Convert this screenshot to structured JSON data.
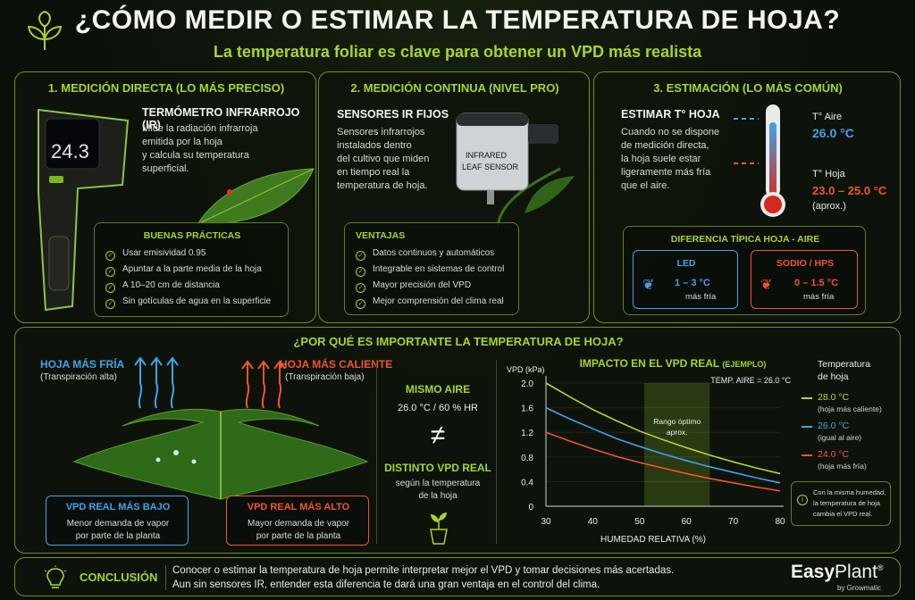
{
  "header": {
    "title": "¿CÓMO MEDIR O ESTIMAR LA TEMPERATURA DE HOJA?",
    "subtitle": "La temperatura foliar es clave para obtener un VPD más realista"
  },
  "section1": {
    "title": "1. MEDICIÓN DIRECTA (LO MÁS PRECISO)",
    "heading": "TERMÓMETRO INFRARROJO (IR)",
    "body": [
      "Mide la radiación infrarroja",
      "emitida por la hoja",
      "y calcula su temperatura",
      "superficial."
    ],
    "device_reading": "24.3",
    "practices_title": "BUENAS PRÁCTICAS",
    "practices": [
      "Usar emisividad 0.95",
      "Apuntar a la parte media de la hoja",
      "A 10–20 cm de distancia",
      "Sin gotículas de agua en la superficie"
    ]
  },
  "section2": {
    "title": "2. MEDICIÓN CONTINUA (NIVEL PRO)",
    "heading": "SENSORES IR FIJOS",
    "body": [
      "Sensores infrarrojos",
      "instalados dentro",
      "del cultivo que miden",
      "en tiempo real la",
      "temperatura de hoja."
    ],
    "sensor_label_1": "INFRARED",
    "sensor_label_2": "LEAF SENSOR",
    "advantages_title": "VENTAJAS",
    "advantages": [
      "Datos continuos y automáticos",
      "Integrable en sistemas de control",
      "Mayor precisión del VPD",
      "Mejor comprensión del clima real"
    ]
  },
  "section3": {
    "title": "3. ESTIMACIÓN (LO MÁS COMÚN)",
    "heading": "ESTIMAR T° HOJA",
    "body": [
      "Cuando no se dispone",
      "de medición directa,",
      "la hoja suele estar",
      "ligeramente más fría",
      "que el aire."
    ],
    "air_label": "T° Aire",
    "air_value": "26.0 °C",
    "leaf_label": "T° Hoja",
    "leaf_value": "23.0 – 25.0 °C",
    "leaf_note": "(aprox.)",
    "diff_title": "DIFERENCIA TÍPICA HOJA - AIRE",
    "led_title": "LED",
    "led_value": "1 – 3 °C",
    "led_note": "más fría",
    "hps_title": "SODIO / HPS",
    "hps_value": "0 – 1.5 °C",
    "hps_note": "más fría"
  },
  "why": {
    "title": "¿POR QUÉ ES IMPORTANTE LA TEMPERATURA DE HOJA?",
    "cold_title": "HOJA MÁS FRÍA",
    "cold_note": "(Transpiración alta)",
    "hot_title": "HOJA MÁS CALIENTE",
    "hot_note": "(Transpiración baja)",
    "low_title": "VPD REAL MÁS BAJO",
    "low_body": [
      "Menor demanda de vapor",
      "por parte de la planta"
    ],
    "high_title": "VPD REAL MÁS ALTO",
    "high_body": [
      "Mayor demanda de vapor",
      "por parte de la planta"
    ],
    "same_air_title": "MISMO AIRE",
    "same_air_value": "26.0 °C / 60 % HR",
    "neq": "≠",
    "distinct_title": "DISTINTO VPD REAL",
    "distinct_body": [
      "según la temperatura",
      "de la hoja"
    ]
  },
  "chart_data": {
    "type": "line",
    "title": "IMPACTO EN EL VPD REAL",
    "title_note": "(EJEMPLO)",
    "note": "TEMP. AIRE = 26.0 °C",
    "xlabel": "HUMEDAD RELATIVA (%)",
    "ylabel": "VPD (kPa)",
    "xlim": [
      30,
      80
    ],
    "ylim": [
      0,
      2.0
    ],
    "xticks": [
      30,
      40,
      50,
      60,
      70,
      80
    ],
    "yticks": [
      0,
      0.4,
      0.8,
      1.2,
      1.6,
      2.0
    ],
    "band": {
      "x": [
        51,
        65
      ],
      "label_1": "Rango óptimo",
      "label_2": "aprox."
    },
    "x": [
      30,
      35,
      40,
      45,
      50,
      55,
      60,
      65,
      70,
      75,
      80
    ],
    "series": [
      {
        "name": "28.0 °C",
        "color": "#b6d335",
        "values": [
          2.0,
          1.78,
          1.57,
          1.39,
          1.22,
          1.08,
          0.95,
          0.83,
          0.72,
          0.62,
          0.53
        ]
      },
      {
        "name": "26.0 °C",
        "color": "#3fa4ea",
        "values": [
          1.6,
          1.42,
          1.26,
          1.1,
          0.97,
          0.85,
          0.74,
          0.64,
          0.55,
          0.46,
          0.38
        ]
      },
      {
        "name": "24.0 °C",
        "color": "#f0562a",
        "values": [
          1.2,
          1.06,
          0.93,
          0.81,
          0.71,
          0.62,
          0.53,
          0.45,
          0.38,
          0.31,
          0.25
        ]
      }
    ],
    "legend_title_1": "Temperatura",
    "legend_title_2": "de hoja",
    "legend_notes": [
      "(hoja más caliente)",
      "(igual al aire)",
      "(hoja más fría)"
    ],
    "info_note": [
      "Con la misma humedad,",
      "la temperatura de hoja",
      "cambia el VPD real."
    ]
  },
  "conclusion": {
    "label": "CONCLUSIÓN",
    "line1": "Conocer o estimar la temperatura de hoja permite interpretar mejor el VPD y tomar decisiones más acertadas.",
    "line2": "Aun sin sensores IR, entender esta diferencia te dará una gran ventaja en el control del clima.",
    "brand_1": "Easy",
    "brand_2": "Plant",
    "brand_reg": "®",
    "brand_sub": "by Growmatic"
  },
  "colors": {
    "accent": "#a8d42c",
    "cold": "#3fa4ea",
    "hot": "#f0562a"
  }
}
